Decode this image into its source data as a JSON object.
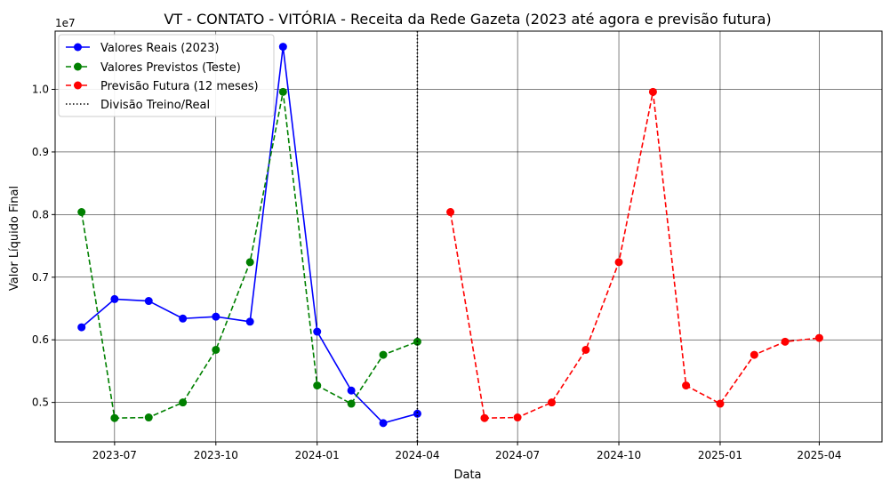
{
  "chart_data": {
    "type": "line",
    "title": "VT - CONTATO - VITÓRIA - Receita da Rede Gazeta (2023 até agora e previsão futura)",
    "xlabel": "Data",
    "ylabel": "Valor Líquido Final",
    "y_offset_label": "1e7",
    "grid": true,
    "legend_position": "top-left",
    "xlim": [
      "2023-05-08",
      "2025-05-28"
    ],
    "ylim": [
      4370000,
      10930000
    ],
    "x_ticks": [
      {
        "date": "2023-07-01",
        "label": "2023-07"
      },
      {
        "date": "2023-10-01",
        "label": "2023-10"
      },
      {
        "date": "2024-01-01",
        "label": "2024-01"
      },
      {
        "date": "2024-04-01",
        "label": "2024-04"
      },
      {
        "date": "2024-07-01",
        "label": "2024-07"
      },
      {
        "date": "2024-10-01",
        "label": "2024-10"
      },
      {
        "date": "2025-01-01",
        "label": "2025-01"
      },
      {
        "date": "2025-04-01",
        "label": "2025-04"
      }
    ],
    "y_ticks": [
      {
        "value": 5000000,
        "label": "0.5"
      },
      {
        "value": 6000000,
        "label": "0.6"
      },
      {
        "value": 7000000,
        "label": "0.7"
      },
      {
        "value": 8000000,
        "label": "0.8"
      },
      {
        "value": 9000000,
        "label": "0.9"
      },
      {
        "value": 10000000,
        "label": "1.0"
      }
    ],
    "series": [
      {
        "name": "Valores Reais (2023)",
        "color": "#0000ff",
        "style": "solid",
        "points": [
          {
            "x": "2023-06-01",
            "y": 6200000
          },
          {
            "x": "2023-07-01",
            "y": 6650000
          },
          {
            "x": "2023-08-01",
            "y": 6620000
          },
          {
            "x": "2023-09-01",
            "y": 6340000
          },
          {
            "x": "2023-10-01",
            "y": 6370000
          },
          {
            "x": "2023-11-01",
            "y": 6290000
          },
          {
            "x": "2023-12-01",
            "y": 10680000
          },
          {
            "x": "2024-01-01",
            "y": 6130000
          },
          {
            "x": "2024-02-01",
            "y": 5190000
          },
          {
            "x": "2024-03-01",
            "y": 4670000
          },
          {
            "x": "2024-04-01",
            "y": 4820000
          }
        ]
      },
      {
        "name": "Valores Previstos (Teste)",
        "color": "#008000",
        "style": "dashed",
        "points": [
          {
            "x": "2023-06-01",
            "y": 8040000
          },
          {
            "x": "2023-07-01",
            "y": 4750000
          },
          {
            "x": "2023-08-01",
            "y": 4760000
          },
          {
            "x": "2023-09-01",
            "y": 5000000
          },
          {
            "x": "2023-10-01",
            "y": 5840000
          },
          {
            "x": "2023-11-01",
            "y": 7240000
          },
          {
            "x": "2023-12-01",
            "y": 9960000
          },
          {
            "x": "2024-01-01",
            "y": 5270000
          },
          {
            "x": "2024-02-01",
            "y": 4980000
          },
          {
            "x": "2024-03-01",
            "y": 5760000
          },
          {
            "x": "2024-04-01",
            "y": 5970000
          }
        ]
      },
      {
        "name": "Previsão Futura (12 meses)",
        "color": "#ff0000",
        "style": "dashed",
        "points": [
          {
            "x": "2024-05-01",
            "y": 8040000
          },
          {
            "x": "2024-06-01",
            "y": 4750000
          },
          {
            "x": "2024-07-01",
            "y": 4760000
          },
          {
            "x": "2024-08-01",
            "y": 5000000
          },
          {
            "x": "2024-09-01",
            "y": 5840000
          },
          {
            "x": "2024-10-01",
            "y": 7240000
          },
          {
            "x": "2024-11-01",
            "y": 9960000
          },
          {
            "x": "2024-12-01",
            "y": 5270000
          },
          {
            "x": "2025-01-01",
            "y": 4980000
          },
          {
            "x": "2025-02-01",
            "y": 5760000
          },
          {
            "x": "2025-03-01",
            "y": 5970000
          },
          {
            "x": "2025-04-01",
            "y": 6030000
          }
        ]
      }
    ],
    "vline": {
      "name": "Divisão Treino/Real",
      "x": "2024-04-01",
      "color": "#000000",
      "style": "dotted"
    }
  }
}
